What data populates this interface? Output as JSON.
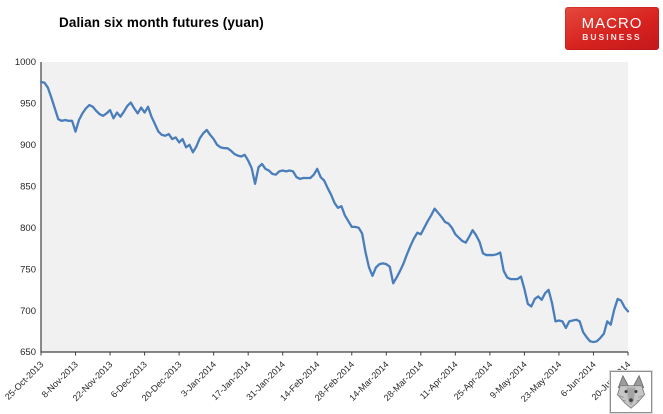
{
  "header": {
    "title": "Dalian six month futures (yuan)",
    "logo": {
      "line1": "MACRO",
      "line2": "BUSINESS",
      "bg_color": "#d8231f",
      "text_color": "#ffffff"
    },
    "stamp_icon": "wolf-face"
  },
  "chart_data": {
    "type": "line",
    "title": "Dalian six month futures (yuan)",
    "series_name": "Dalian six month futures",
    "unit": "yuan",
    "x_tick_labels": [
      "25-Oct-2013",
      "8-Nov-2013",
      "22-Nov-2013",
      "6-Dec-2013",
      "20-Dec-2013",
      "3-Jan-2014",
      "17-Jan-2014",
      "31-Jan-2014",
      "14-Feb-2014",
      "28-Feb-2014",
      "14-Mar-2014",
      "28-Mar-2014",
      "11-Apr-2014",
      "25-Apr-2014",
      "9-May-2014",
      "23-May-2014",
      "6-Jun-2014",
      "20-Jun-2014"
    ],
    "y_tick_labels": [
      "650",
      "700",
      "750",
      "800",
      "850",
      "900",
      "950",
      "1000"
    ],
    "points_per_tick": 10,
    "ylim": [
      650,
      1000
    ],
    "ytick_step": 50,
    "grid": "off",
    "legend": "none",
    "line_color": "#4a7ebb",
    "plot_bg_color": "#f1f1f1",
    "axis_color": "#404040",
    "label_color": "#262626",
    "values": [
      976,
      975,
      969,
      957,
      944,
      931,
      929,
      930,
      929,
      929,
      916,
      930,
      938,
      944,
      948,
      946,
      941,
      937,
      935,
      938,
      942,
      932,
      939,
      934,
      940,
      947,
      951,
      944,
      938,
      945,
      939,
      946,
      934,
      925,
      916,
      912,
      911,
      913,
      907,
      909,
      903,
      907,
      897,
      900,
      891,
      898,
      908,
      914,
      918,
      912,
      907,
      900,
      897,
      896,
      896,
      893,
      889,
      887,
      886,
      888,
      881,
      872,
      853,
      873,
      877,
      871,
      869,
      865,
      864,
      868,
      869,
      868,
      869,
      868,
      861,
      859,
      860,
      860,
      860,
      864,
      871,
      861,
      857,
      848,
      840,
      830,
      824,
      826,
      815,
      808,
      801,
      801,
      800,
      793,
      770,
      752,
      742,
      752,
      756,
      757,
      756,
      753,
      733,
      740,
      748,
      757,
      768,
      778,
      787,
      794,
      792,
      800,
      808,
      815,
      823,
      818,
      813,
      807,
      805,
      800,
      792,
      788,
      784,
      782,
      789,
      797,
      791,
      783,
      769,
      767,
      767,
      767,
      768,
      770,
      748,
      740,
      738,
      738,
      738,
      741,
      726,
      708,
      705,
      714,
      717,
      713,
      721,
      725,
      709,
      687,
      688,
      687,
      679,
      687,
      688,
      689,
      687,
      674,
      668,
      663,
      662,
      663,
      667,
      672,
      687,
      683,
      701,
      714,
      712,
      704,
      699
    ]
  }
}
